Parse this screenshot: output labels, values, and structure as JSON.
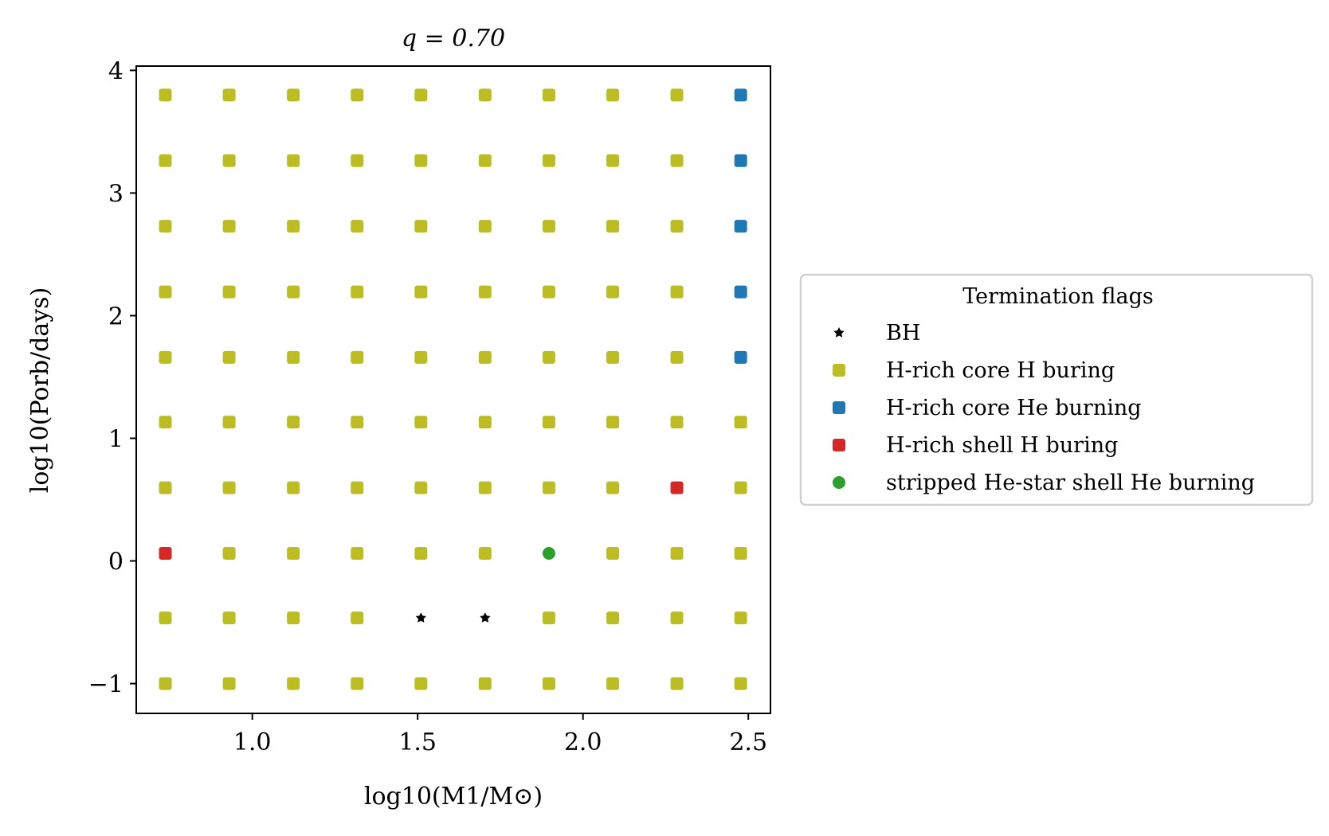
{
  "chart_data": {
    "type": "scatter",
    "title": "q = 0.70",
    "xlabel": "log10(M1/M⊙)",
    "ylabel": "log10(Porb/days)",
    "xlim": [
      0.649,
      2.567
    ],
    "ylim": [
      -1.243,
      4.035
    ],
    "xticks": [
      1.0,
      1.5,
      2.0,
      2.5
    ],
    "xtick_labels": [
      "1.0",
      "1.5",
      "2.0",
      "2.5"
    ],
    "yticks": [
      -1,
      0,
      1,
      2,
      3,
      4
    ],
    "ytick_labels": [
      "−1",
      "0",
      "1",
      "2",
      "3",
      "4"
    ],
    "grid": false,
    "x_values": [
      0.737,
      0.93,
      1.124,
      1.317,
      1.51,
      1.704,
      1.897,
      2.09,
      2.284,
      2.477
    ],
    "y_values": [
      -1.0,
      -0.465,
      0.062,
      0.597,
      1.132,
      1.66,
      2.194,
      2.729,
      3.264,
      3.799
    ],
    "legend": {
      "title": "Termination flags",
      "placement": "outside-right",
      "entries": [
        {
          "name": "BH",
          "color": "#000000",
          "marker": "star"
        },
        {
          "name": "H-rich core H buring",
          "color": "#bcbd22",
          "marker": "square"
        },
        {
          "name": "H-rich core He burning",
          "color": "#1f77b4",
          "marker": "square"
        },
        {
          "name": "H-rich shell H buring",
          "color": "#d62728",
          "marker": "square"
        },
        {
          "name": "stripped He-star shell He burning",
          "color": "#2ca02c",
          "marker": "circle"
        }
      ]
    },
    "default_flag": 1,
    "points_override": [
      {
        "x": 2.477,
        "y": 3.799,
        "flag": 2
      },
      {
        "x": 2.477,
        "y": 3.264,
        "flag": 2
      },
      {
        "x": 2.477,
        "y": 2.729,
        "flag": 2
      },
      {
        "x": 2.477,
        "y": 2.194,
        "flag": 2
      },
      {
        "x": 2.477,
        "y": 1.66,
        "flag": 2
      },
      {
        "x": 0.737,
        "y": 0.062,
        "flag": 3
      },
      {
        "x": 2.284,
        "y": 0.597,
        "flag": 3
      },
      {
        "x": 1.897,
        "y": 0.062,
        "flag": 4
      },
      {
        "x": 1.51,
        "y": -0.465,
        "flag": 0
      },
      {
        "x": 1.704,
        "y": -0.465,
        "flag": 0
      }
    ]
  }
}
